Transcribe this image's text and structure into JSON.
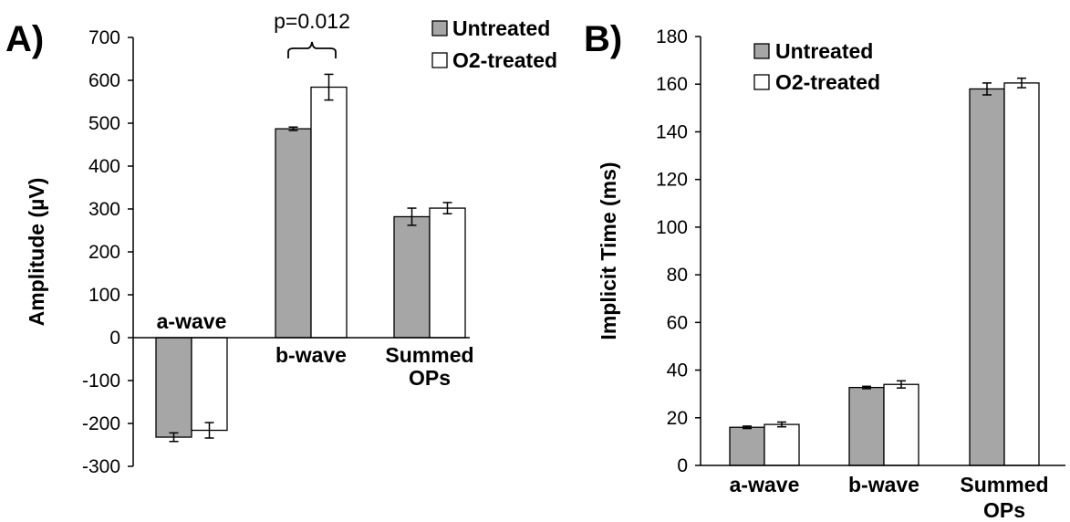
{
  "chart_data": [
    {
      "type": "bar",
      "panel_label": "A)",
      "ylabel": "Amplitude (µV)",
      "ylim": [
        -300,
        700
      ],
      "yticks": [
        -300,
        -200,
        -100,
        0,
        100,
        200,
        300,
        400,
        500,
        600,
        700
      ],
      "categories": [
        "a-wave",
        "b-wave",
        "Summed OPs"
      ],
      "category_labels": [
        [
          "a-wave"
        ],
        [
          "b-wave"
        ],
        [
          "Summed",
          "OPs"
        ]
      ],
      "series": [
        {
          "name": "Untreated",
          "color": "#a6a6a6",
          "values": [
            -232,
            487,
            282
          ],
          "errors": [
            10,
            4,
            20
          ]
        },
        {
          "name": "O2-treated",
          "color": "#ffffff",
          "values": [
            -216,
            584,
            302
          ],
          "errors": [
            18,
            30,
            13
          ]
        }
      ],
      "annotation": {
        "text": "p=0.012",
        "category": "b-wave"
      },
      "legend": "top-right"
    },
    {
      "type": "bar",
      "panel_label": "B)",
      "ylabel": "Implicit Time (ms)",
      "ylim": [
        0,
        180
      ],
      "yticks": [
        0,
        20,
        40,
        60,
        80,
        100,
        120,
        140,
        160,
        180
      ],
      "categories": [
        "a-wave",
        "b-wave",
        "Summed OPs"
      ],
      "category_labels": [
        [
          "a-wave"
        ],
        [
          "b-wave"
        ],
        [
          "Summed",
          "OPs"
        ]
      ],
      "series": [
        {
          "name": "Untreated",
          "color": "#a6a6a6",
          "values": [
            16,
            32.7,
            158
          ],
          "errors": [
            0.5,
            0.5,
            2.5
          ]
        },
        {
          "name": "O2-treated",
          "color": "#ffffff",
          "values": [
            17.2,
            34,
            160.5
          ],
          "errors": [
            1,
            1.5,
            2
          ]
        }
      ],
      "legend": "top-left"
    }
  ]
}
